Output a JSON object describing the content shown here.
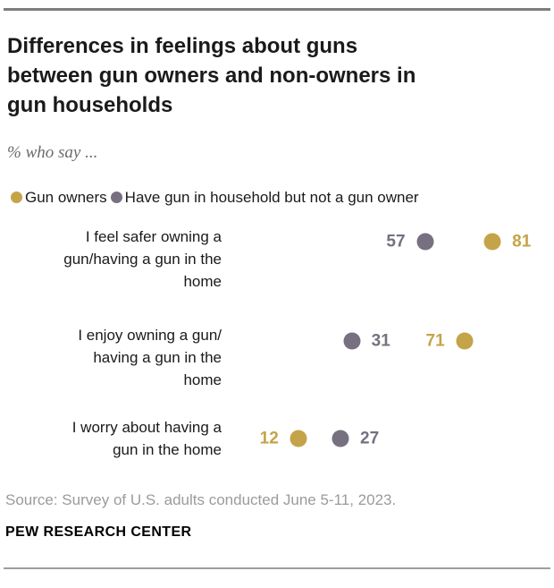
{
  "header": {
    "title_lines": [
      "Differences in feelings about guns",
      "between gun owners and non-owners in",
      "gun households"
    ],
    "subtitle": "% who say ..."
  },
  "legend": [
    {
      "label": "Gun owners",
      "color": "#C5A348"
    },
    {
      "label": "Have gun in household but not a gun owner",
      "color": "#767080"
    }
  ],
  "chart_data": {
    "type": "scatter",
    "subtype": "dot-plot",
    "unit": "%",
    "xlim": [
      0,
      100
    ],
    "grid": false,
    "legend_position": "top",
    "series": [
      "Gun owners",
      "Have gun in household but not a gun owner"
    ],
    "rows": [
      {
        "category": "I feel safer owning a gun/having a gun in the home",
        "label_lines": [
          "I feel safer owning a",
          "gun/having a gun in the",
          "home"
        ],
        "points": [
          {
            "series_index": 1,
            "value": 57,
            "label_side": "left"
          },
          {
            "series_index": 0,
            "value": 81,
            "label_side": "right"
          }
        ]
      },
      {
        "category": "I enjoy owning a gun/having a gun in the home",
        "label_lines": [
          "I enjoy owning a gun/",
          "having a gun in the",
          "home"
        ],
        "points": [
          {
            "series_index": 1,
            "value": 31,
            "label_side": "right"
          },
          {
            "series_index": 0,
            "value": 71,
            "label_side": "left"
          }
        ]
      },
      {
        "category": "I worry about having a gun in the home",
        "label_lines": [
          "I worry about having a",
          "gun in the home"
        ],
        "points": [
          {
            "series_index": 0,
            "value": 12,
            "label_side": "left"
          },
          {
            "series_index": 1,
            "value": 27,
            "label_side": "right"
          }
        ]
      }
    ]
  },
  "footer": {
    "source": "Source: Survey of U.S. adults conducted June 5-11, 2023.",
    "brand": "PEW RESEARCH CENTER"
  },
  "colors": {
    "gold": "#C5A348",
    "gray_purple": "#767080",
    "title_text": "#1a1a1a",
    "subtitle_text": "#6b6b6b",
    "source_text": "#9b9b9b",
    "rule": "#7d7d7d"
  }
}
